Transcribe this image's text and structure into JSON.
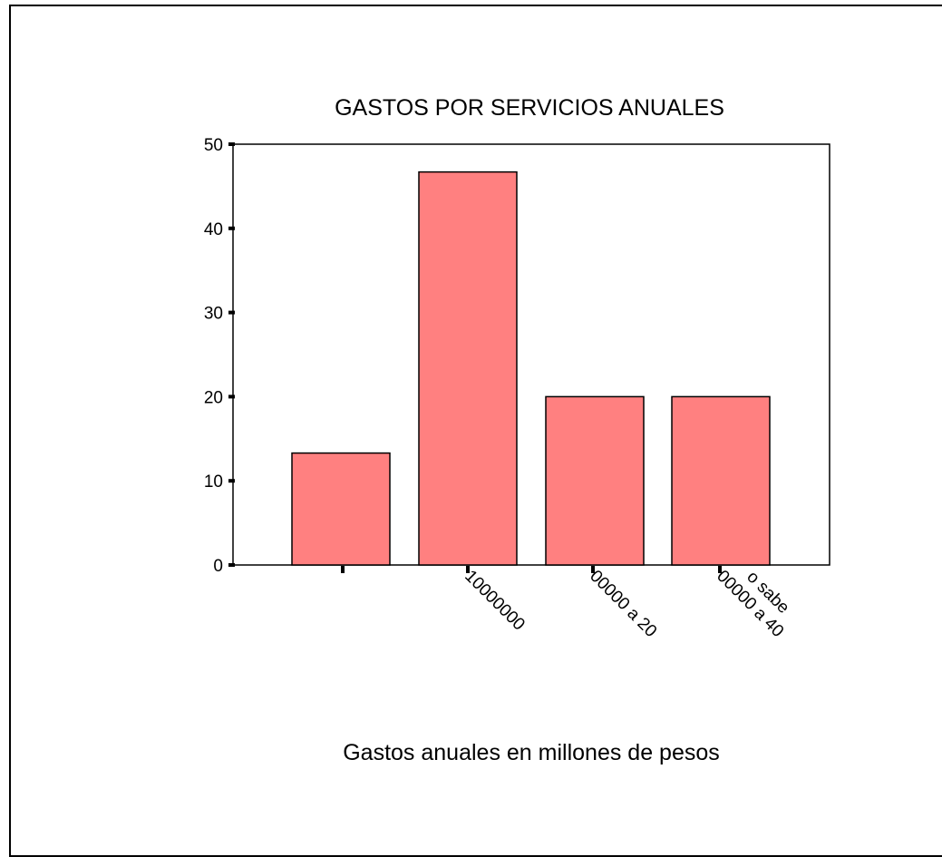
{
  "chart_data": {
    "type": "bar",
    "title": "GASTOS POR SERVICIOS ANUALES",
    "xlabel": "Gastos anuales en millones de pesos",
    "ylabel": "",
    "categories": [
      "",
      "10000000",
      "00000 a 20",
      "00000 a 40"
    ],
    "overflow_label": "o sabe",
    "values": [
      13.3,
      46.7,
      20,
      20
    ],
    "ylim": [
      0,
      50
    ],
    "yticks": [
      "0",
      "10",
      "20",
      "30",
      "40",
      "50"
    ],
    "grid": false,
    "legend": "none",
    "bar_color": "#FF8080",
    "bar_stroke": "#000000"
  }
}
